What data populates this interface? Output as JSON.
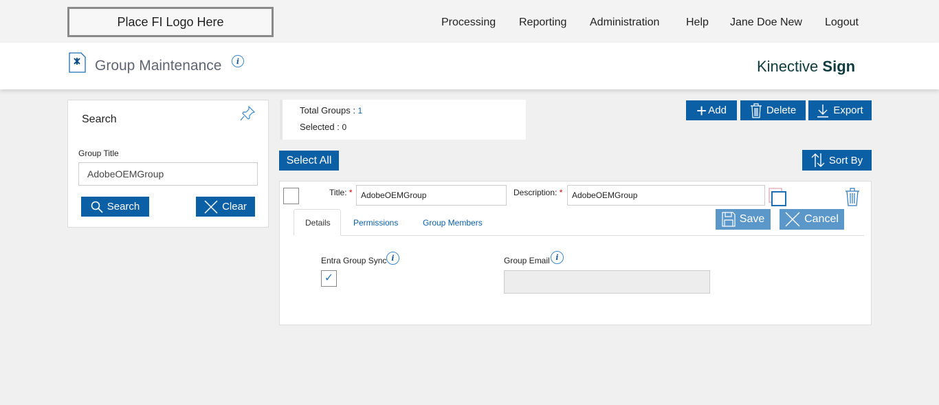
{
  "topbar": {
    "logo": "Place FI Logo Here",
    "nav": [
      "Processing",
      "Reporting",
      "Administration",
      "Help",
      "Jane Doe New",
      "Logout"
    ]
  },
  "header": {
    "title": "Group Maintenance",
    "brand_light": "Kinective",
    "brand_bold": "Sign"
  },
  "search": {
    "heading": "Search",
    "field_label": "Group Title",
    "field_value": "AdobeOEMGroup",
    "search_label": "Search",
    "clear_label": "Clear"
  },
  "summary": {
    "total_label": "Total Groups : ",
    "total_value": "1",
    "selected_label": "Selected : ",
    "selected_value": "0"
  },
  "toolbar": {
    "add": "Add",
    "delete": "Delete",
    "export": "Export",
    "select_all": "Select All",
    "sort_by": "Sort By"
  },
  "record": {
    "title_label": "Title:",
    "title_value": "AdobeOEMGroup",
    "desc_label": "Description:",
    "desc_value": "AdobeOEMGroup",
    "tabs": [
      "Details",
      "Permissions",
      "Group Members"
    ],
    "save": "Save",
    "cancel": "Cancel",
    "sync_label": "Entra Group Sync",
    "sync_checked": true,
    "email_label": "Group Email",
    "email_value": ""
  }
}
